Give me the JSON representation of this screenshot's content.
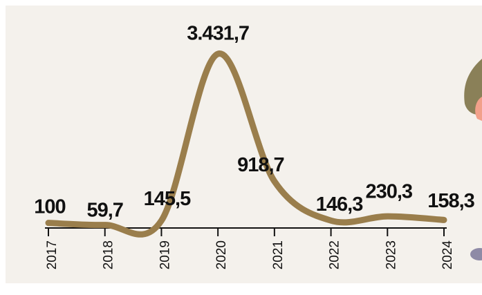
{
  "chart_data": {
    "type": "line",
    "categories": [
      "2017",
      "2018",
      "2019",
      "2020",
      "2021",
      "2022",
      "2023",
      "2024"
    ],
    "values": [
      100,
      59.7,
      145.5,
      3431.7,
      918.7,
      146.3,
      230.3,
      158.3
    ],
    "value_labels": [
      "100",
      "59,7",
      "145,5",
      "3.431,7",
      "918,7",
      "146,3",
      "230,3",
      "158,3"
    ],
    "color": "#9a7e4c",
    "smooth": true
  }
}
